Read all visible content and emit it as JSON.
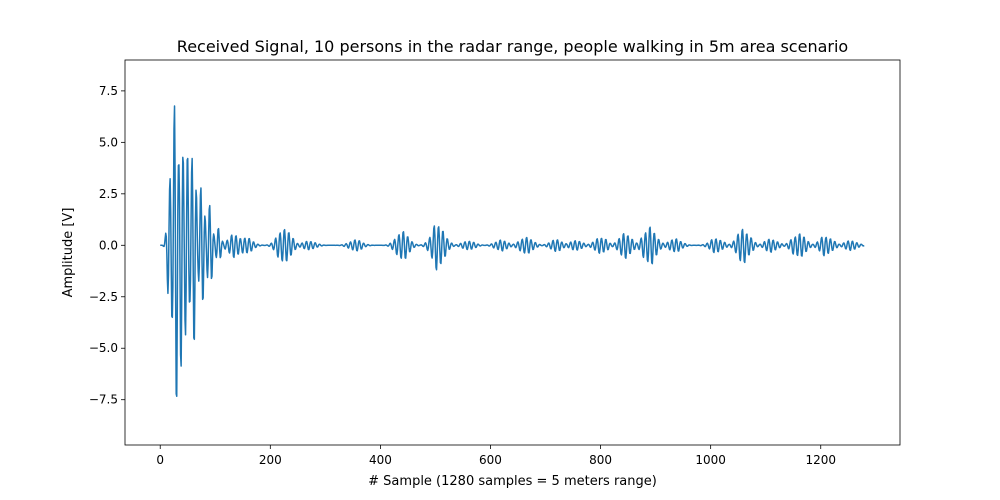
{
  "chart_data": {
    "type": "line",
    "title": "Received Signal, 10 persons in the radar range, people walking in 5m area scenario",
    "xlabel": "# Sample (1280 samples = 5 meters range)",
    "ylabel": "Amplitude [V]",
    "xlim": [
      -64,
      1344
    ],
    "ylim": [
      -9.7,
      9.0
    ],
    "xticks": [
      0,
      200,
      400,
      600,
      800,
      1000,
      1200
    ],
    "xtick_labels": [
      "0",
      "200",
      "400",
      "600",
      "800",
      "1000",
      "1200"
    ],
    "yticks": [
      -7.5,
      -5.0,
      -2.5,
      0.0,
      2.5,
      5.0,
      7.5
    ],
    "ytick_labels": [
      "−7.5",
      "−5.0",
      "−2.5",
      "0.0",
      "2.5",
      "5.0",
      "7.5"
    ],
    "grid": false,
    "line_color": "#1f77b4",
    "series": [
      {
        "sample_count": 1280,
        "x_range": [
          0,
          1279
        ],
        "carrier_period_samples": 8,
        "envelope_peaks": [
          {
            "x": 20,
            "amp": 5.0
          },
          {
            "x": 28,
            "amp": 9.0
          },
          {
            "x": 38,
            "amp": 7.0
          },
          {
            "x": 48,
            "amp": 5.5
          },
          {
            "x": 60,
            "amp": 6.3
          },
          {
            "x": 75,
            "amp": 3.5
          },
          {
            "x": 90,
            "amp": 2.2
          },
          {
            "x": 105,
            "amp": 0.9
          },
          {
            "x": 135,
            "amp": 0.6
          },
          {
            "x": 155,
            "amp": 0.45
          },
          {
            "x": 225,
            "amp": 1.05
          },
          {
            "x": 270,
            "amp": 0.25
          },
          {
            "x": 355,
            "amp": 0.3
          },
          {
            "x": 440,
            "amp": 0.75
          },
          {
            "x": 505,
            "amp": 1.3
          },
          {
            "x": 560,
            "amp": 0.25
          },
          {
            "x": 620,
            "amp": 0.3
          },
          {
            "x": 665,
            "amp": 0.5
          },
          {
            "x": 720,
            "amp": 0.3
          },
          {
            "x": 755,
            "amp": 0.25
          },
          {
            "x": 800,
            "amp": 0.45
          },
          {
            "x": 845,
            "amp": 0.65
          },
          {
            "x": 890,
            "amp": 1.05
          },
          {
            "x": 935,
            "amp": 0.35
          },
          {
            "x": 1010,
            "amp": 0.4
          },
          {
            "x": 1060,
            "amp": 0.9
          },
          {
            "x": 1110,
            "amp": 0.35
          },
          {
            "x": 1160,
            "amp": 0.65
          },
          {
            "x": 1210,
            "amp": 0.55
          },
          {
            "x": 1255,
            "amp": 0.25
          }
        ]
      }
    ]
  }
}
